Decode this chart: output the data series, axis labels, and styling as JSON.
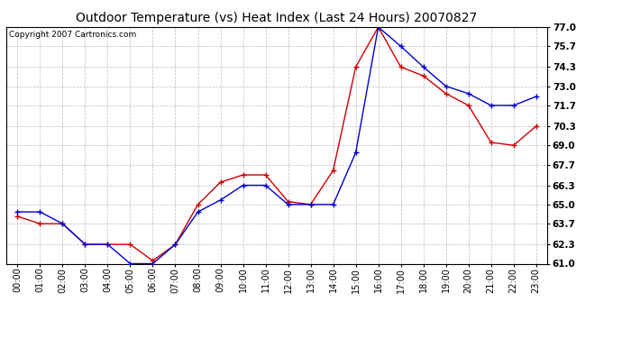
{
  "title": "Outdoor Temperature (vs) Heat Index (Last 24 Hours) 20070827",
  "copyright_text": "Copyright 2007 Cartronics.com",
  "x_labels": [
    "00:00",
    "01:00",
    "02:00",
    "03:00",
    "04:00",
    "05:00",
    "06:00",
    "07:00",
    "08:00",
    "09:00",
    "10:00",
    "11:00",
    "12:00",
    "13:00",
    "14:00",
    "15:00",
    "16:00",
    "17:00",
    "18:00",
    "19:00",
    "20:00",
    "21:00",
    "22:00",
    "23:00"
  ],
  "temp_data": [
    64.5,
    64.5,
    63.7,
    62.3,
    62.3,
    61.0,
    61.0,
    62.3,
    64.5,
    65.3,
    66.3,
    66.3,
    65.0,
    65.0,
    65.0,
    68.5,
    77.0,
    75.7,
    74.3,
    73.0,
    72.5,
    71.7,
    71.7,
    72.3
  ],
  "heat_index_data": [
    64.2,
    63.7,
    63.7,
    62.3,
    62.3,
    62.3,
    61.2,
    62.3,
    65.0,
    66.5,
    67.0,
    67.0,
    65.2,
    65.0,
    67.3,
    74.3,
    77.0,
    74.3,
    73.7,
    72.5,
    71.7,
    69.2,
    69.0,
    70.3
  ],
  "temp_color": "#0000CC",
  "heat_index_color": "#CC0000",
  "bg_color": "#ffffff",
  "grid_color": "#bbbbbb",
  "ylim_min": 61.0,
  "ylim_max": 77.0,
  "yticks": [
    61.0,
    62.3,
    63.7,
    65.0,
    66.3,
    67.7,
    69.0,
    70.3,
    71.7,
    73.0,
    74.3,
    75.7,
    77.0
  ],
  "title_fontsize": 10,
  "copyright_fontsize": 6.5,
  "tick_fontsize": 7,
  "ytick_fontsize": 7.5
}
